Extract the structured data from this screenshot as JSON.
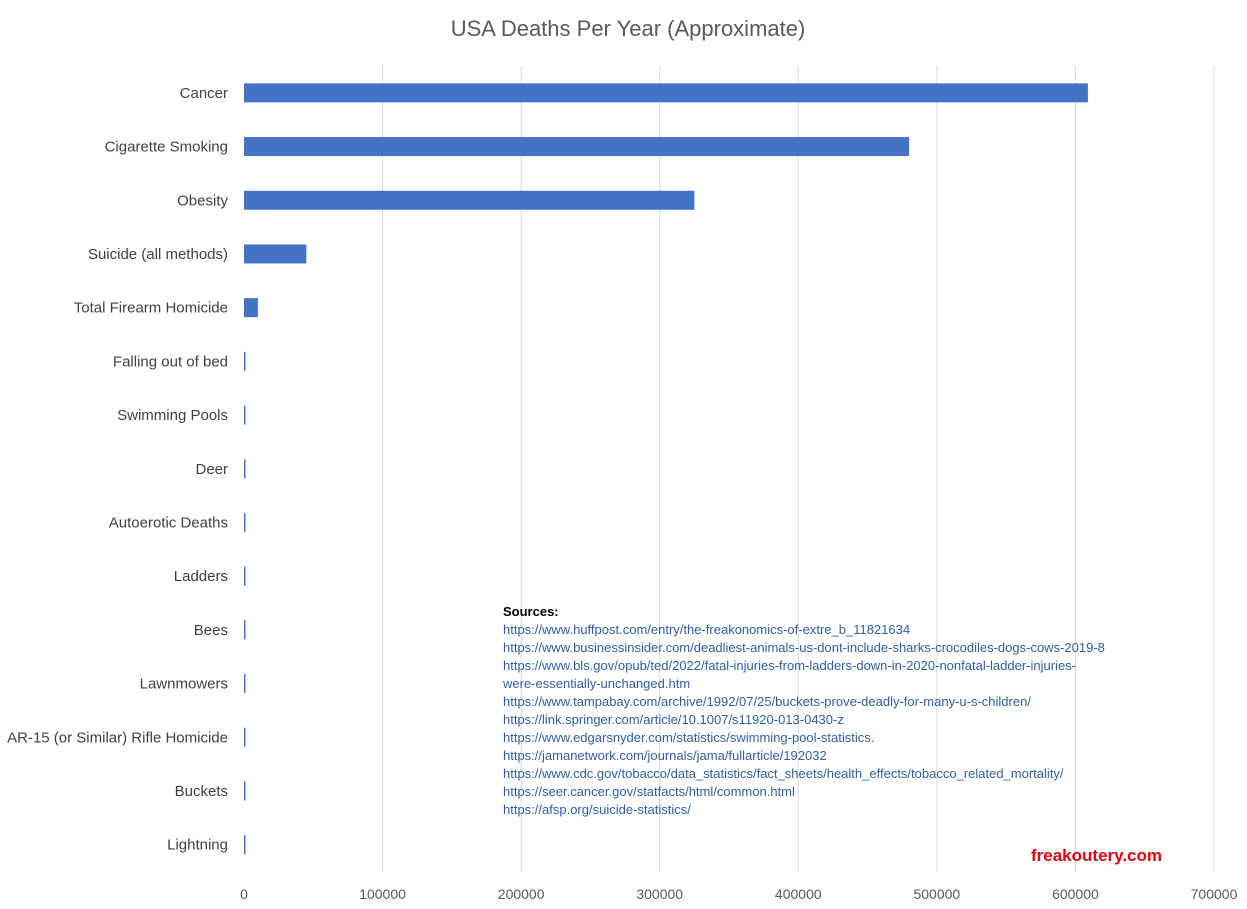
{
  "chart_data": {
    "type": "bar",
    "orientation": "horizontal",
    "title": "USA Deaths Per Year (Approximate)",
    "xlabel": "",
    "ylabel": "",
    "xlim": [
      0,
      700000
    ],
    "x_ticks": [
      "0",
      "100000",
      "200000",
      "300000",
      "400000",
      "500000",
      "600000",
      "700000"
    ],
    "grid": true,
    "categories": [
      "Cancer",
      "Cigarette Smoking",
      "Obesity",
      "Suicide (all methods)",
      "Total Firearm Homicide",
      "Falling out of bed",
      "Swimming Pools",
      "Deer",
      "Autoerotic Deaths",
      "Ladders",
      "Bees",
      "Lawnmowers",
      "AR-15 (or Similar) Rifle Homicide",
      "Buckets",
      "Lightning"
    ],
    "values": [
      609000,
      480000,
      325000,
      45000,
      10000,
      450,
      400,
      440,
      500,
      160,
      100,
      90,
      400,
      100,
      30
    ],
    "bar_color": "#4472c4"
  },
  "sources": {
    "heading": "Sources:",
    "lines": [
      "https://www.huffpost.com/entry/the-freakonomics-of-extre_b_11821634",
      "https://www.businessinsider.com/deadliest-animals-us-dont-include-sharks-crocodiles-dogs-cows-2019-8",
      "https://www.bls.gov/opub/ted/2022/fatal-injuries-from-ladders-down-in-2020-nonfatal-ladder-injuries-",
      "were-essentially-unchanged.htm",
      "https://www.tampabay.com/archive/1992/07/25/buckets-prove-deadly-for-many-u-s-children/",
      "https://link.springer.com/article/10.1007/s11920-013-0430-z",
      "https://www.edgarsnyder.com/statistics/swimming-pool-statistics.",
      "https://jamanetwork.com/journals/jama/fullarticle/192032",
      "https://www.cdc.gov/tobacco/data_statistics/fact_sheets/health_effects/tobacco_related_mortality/",
      "https://seer.cancer.gov/statfacts/html/common.html",
      "https://afsp.org/suicide-statistics/"
    ]
  },
  "brand": "freakoutery.com"
}
